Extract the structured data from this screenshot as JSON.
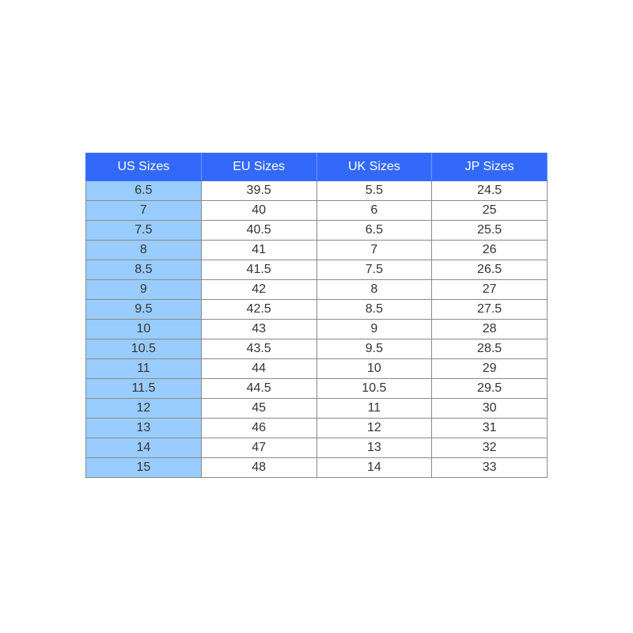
{
  "table": {
    "header": [
      "US Sizes",
      "EU Sizes",
      "UK Sizes",
      "JP Sizes"
    ],
    "rows": [
      [
        "6.5",
        "39.5",
        "5.5",
        "24.5"
      ],
      [
        "7",
        "40",
        "6",
        "25"
      ],
      [
        "7.5",
        "40.5",
        "6.5",
        "25.5"
      ],
      [
        "8",
        "41",
        "7",
        "26"
      ],
      [
        "8.5",
        "41.5",
        "7.5",
        "26.5"
      ],
      [
        "9",
        "42",
        "8",
        "27"
      ],
      [
        "9.5",
        "42.5",
        "8.5",
        "27.5"
      ],
      [
        "10",
        "43",
        "9",
        "28"
      ],
      [
        "10.5",
        "43.5",
        "9.5",
        "28.5"
      ],
      [
        "11",
        "44",
        "10",
        "29"
      ],
      [
        "11.5",
        "44.5",
        "10.5",
        "29.5"
      ],
      [
        "12",
        "45",
        "11",
        "30"
      ],
      [
        "13",
        "46",
        "12",
        "31"
      ],
      [
        "14",
        "47",
        "13",
        "32"
      ],
      [
        "15",
        "48",
        "14",
        "33"
      ]
    ]
  }
}
